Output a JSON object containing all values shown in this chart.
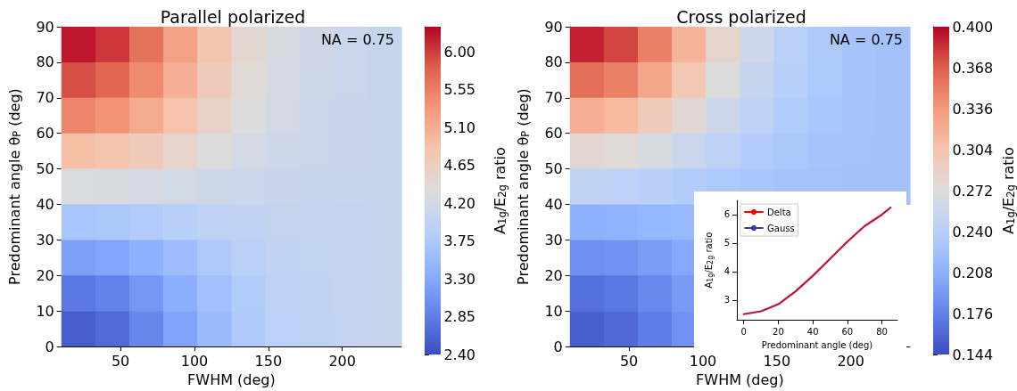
{
  "chart_data": [
    {
      "type": "heatmap",
      "title": "Parallel polarized",
      "xlabel": "FWHM (deg)",
      "ylabel": "Predominant angle θ$_{P}$ (deg)",
      "clabel": "A$_{1g}$/E$_{2g}$ ratio",
      "annotations": [
        "NA = 0.75"
      ],
      "xlim": [
        10,
        240
      ],
      "ylim": [
        0,
        90
      ],
      "xticks": [
        50,
        100,
        150,
        200
      ],
      "yticks": [
        0,
        10,
        20,
        30,
        40,
        50,
        60,
        70,
        80,
        90
      ],
      "clim": [
        2.4,
        6.3
      ],
      "cticks": [
        {
          "value": 2.4,
          "label": "2.40"
        },
        2.85,
        {
          "value": 3.3,
          "label": "3.30"
        },
        3.75,
        {
          "value": 4.2,
          "label": "4.20"
        },
        4.65,
        {
          "value": 5.1,
          "label": "5.10"
        },
        5.55,
        {
          "value": 6.0,
          "label": "6.00"
        }
      ],
      "cells": [
        [
          6.2,
          6.03,
          5.66,
          5.23,
          4.8,
          4.48,
          4.27,
          4.16,
          4.09,
          4.05
        ],
        [
          5.9,
          5.75,
          5.44,
          5.07,
          4.7,
          4.42,
          4.24,
          4.14,
          4.09,
          4.05
        ],
        [
          5.5,
          5.38,
          5.14,
          4.85,
          4.56,
          4.34,
          4.2,
          4.12,
          4.08,
          4.05
        ],
        [
          4.9,
          4.83,
          4.69,
          4.52,
          4.35,
          4.22,
          4.14,
          4.09,
          4.07,
          4.05
        ],
        [
          4.3,
          4.28,
          4.24,
          4.19,
          4.14,
          4.1,
          4.08,
          4.06,
          4.06,
          4.05
        ],
        [
          3.7,
          3.73,
          3.79,
          3.86,
          3.93,
          3.98,
          4.02,
          4.03,
          4.04,
          4.05
        ],
        [
          3.2,
          3.27,
          3.41,
          3.58,
          3.75,
          3.88,
          3.97,
          4.01,
          4.03,
          4.05
        ],
        [
          2.8,
          2.9,
          3.11,
          3.36,
          3.61,
          3.8,
          3.93,
          3.99,
          4.03,
          4.05
        ],
        [
          2.55,
          2.67,
          2.93,
          3.23,
          3.53,
          3.75,
          3.9,
          3.98,
          4.02,
          4.05
        ]
      ]
    },
    {
      "type": "heatmap",
      "title": "Cross polarized",
      "xlabel": "FWHM (deg)",
      "ylabel": "Predominant angle θ$_{P}$ (deg)",
      "clabel": "A$_{1g}$/E$_{2g}$ ratio",
      "annotations": [
        "NA = 0.75"
      ],
      "xlim": [
        10,
        240
      ],
      "ylim": [
        0,
        90
      ],
      "xticks": [
        50,
        100,
        150,
        200
      ],
      "yticks": [
        0,
        10,
        20,
        30,
        40,
        50,
        60,
        70,
        80,
        90
      ],
      "clim": [
        0.144,
        0.4
      ],
      "cticks": [
        0.144,
        0.176,
        0.208,
        {
          "value": 0.24,
          "label": "0.240"
        },
        0.272,
        0.304,
        0.336,
        0.368,
        {
          "value": 0.4,
          "label": "0.400"
        }
      ],
      "cells": [
        [
          0.39,
          0.377,
          0.349,
          0.316,
          0.283,
          0.258,
          0.242,
          0.233,
          0.228,
          0.225
        ],
        [
          0.36,
          0.349,
          0.326,
          0.299,
          0.272,
          0.252,
          0.239,
          0.232,
          0.228,
          0.225
        ],
        [
          0.32,
          0.312,
          0.296,
          0.277,
          0.258,
          0.244,
          0.235,
          0.23,
          0.227,
          0.225
        ],
        [
          0.28,
          0.276,
          0.266,
          0.255,
          0.244,
          0.236,
          0.231,
          0.228,
          0.226,
          0.225
        ],
        [
          0.245,
          0.243,
          0.24,
          0.236,
          0.232,
          0.229,
          0.227,
          0.226,
          0.225,
          0.225
        ],
        [
          0.21,
          0.211,
          0.214,
          0.217,
          null,
          null,
          null,
          null,
          null,
          null
        ],
        [
          0.185,
          0.188,
          0.195,
          0.203,
          null,
          null,
          null,
          null,
          null,
          null
        ],
        [
          0.165,
          0.17,
          0.18,
          0.192,
          null,
          null,
          null,
          null,
          null,
          null
        ],
        [
          0.155,
          0.161,
          0.173,
          0.187,
          null,
          null,
          null,
          null,
          null,
          null
        ]
      ]
    },
    {
      "type": "line",
      "xlabel": "Predominant angle (deg)",
      "ylabel": "A$_{1g}$/E$_{2g}$ ratio",
      "x": [
        0,
        10,
        20,
        30,
        40,
        50,
        60,
        70,
        80,
        85
      ],
      "xlim": [
        -4,
        89
      ],
      "ylim": [
        2.3,
        6.5
      ],
      "xticks": [
        0,
        20,
        40,
        60,
        80
      ],
      "yticks": [
        3,
        4,
        5,
        6
      ],
      "legend": "top left",
      "marker": "none",
      "series": [
        {
          "name": "Delta",
          "color": "#ff0000",
          "line_style": "solid",
          "values": [
            2.5,
            2.6,
            2.85,
            3.3,
            3.85,
            4.45,
            5.05,
            5.6,
            6.0,
            6.25
          ]
        },
        {
          "name": "Gauss",
          "color": "#3b3bb0",
          "line_style": "dashed",
          "values": [
            2.5,
            2.6,
            2.85,
            3.3,
            3.85,
            4.45,
            5.05,
            5.6,
            6.0,
            6.25
          ]
        }
      ]
    }
  ]
}
